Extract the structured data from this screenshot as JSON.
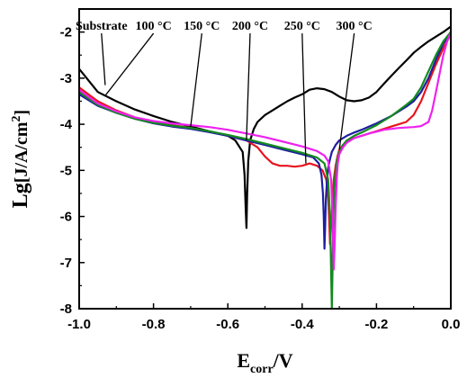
{
  "chart_data": {
    "type": "line",
    "xlabel": {
      "main": "E",
      "sub": "corr",
      "rest": "/V"
    },
    "ylabel": {
      "main": "Lg",
      "rest": "[J/A/cm",
      "sup": "2",
      "end": "]"
    },
    "xlim": [
      -1.0,
      0.0
    ],
    "ylim": [
      -8,
      -1.5
    ],
    "xticks": [
      -1.0,
      -0.8,
      -0.6,
      -0.4,
      -0.2,
      0.0
    ],
    "xtick_labels": [
      "-1.0",
      "-0.8",
      "-0.6",
      "-0.4",
      "-0.2",
      "0.0"
    ],
    "yticks": [
      -8,
      -7,
      -6,
      -5,
      -4,
      -3,
      -2
    ],
    "ytick_labels": [
      "-8",
      "-7",
      "-6",
      "-5",
      "-4",
      "-3",
      "-2"
    ],
    "grid": false,
    "legend": "none",
    "annotations": [
      {
        "text": "Substrate",
        "x": -0.94,
        "y": -1.95,
        "pointer": [
          -0.93,
          -3.15
        ]
      },
      {
        "text": "100 °C",
        "x": -0.8,
        "y": -1.95,
        "pointer": [
          -0.93,
          -3.38
        ]
      },
      {
        "text": "150 °C",
        "x": -0.67,
        "y": -1.95,
        "pointer": [
          -0.7,
          -4.05
        ]
      },
      {
        "text": "200 °C",
        "x": -0.54,
        "y": -1.95,
        "pointer": [
          -0.55,
          -4.35
        ]
      },
      {
        "text": "250 °C",
        "x": -0.4,
        "y": -1.95,
        "pointer": [
          -0.39,
          -4.85
        ]
      },
      {
        "text": "300 °C",
        "x": -0.26,
        "y": -1.95,
        "pointer": [
          -0.3,
          -4.55
        ]
      }
    ],
    "series": [
      {
        "color": "#000000",
        "x": [
          -1.0,
          -0.95,
          -0.9,
          -0.85,
          -0.8,
          -0.75,
          -0.7,
          -0.65,
          -0.6,
          -0.58,
          -0.56,
          -0.555,
          -0.552,
          -0.55,
          -0.548,
          -0.545,
          -0.54,
          -0.53,
          -0.52,
          -0.5,
          -0.48,
          -0.46,
          -0.44,
          -0.42,
          -0.4,
          -0.38,
          -0.36,
          -0.34,
          -0.32,
          -0.3,
          -0.28,
          -0.26,
          -0.24,
          -0.22,
          -0.2,
          -0.18,
          -0.16,
          -0.14,
          -0.12,
          -0.1,
          -0.08,
          -0.06,
          -0.04,
          -0.02,
          0.0
        ],
        "y": [
          -2.8,
          -3.3,
          -3.5,
          -3.68,
          -3.82,
          -3.95,
          -4.05,
          -4.15,
          -4.25,
          -4.35,
          -4.6,
          -5.1,
          -5.8,
          -6.25,
          -5.5,
          -4.8,
          -4.35,
          -4.1,
          -3.95,
          -3.8,
          -3.7,
          -3.6,
          -3.5,
          -3.42,
          -3.35,
          -3.25,
          -3.22,
          -3.24,
          -3.3,
          -3.4,
          -3.48,
          -3.5,
          -3.48,
          -3.42,
          -3.3,
          -3.12,
          -2.95,
          -2.78,
          -2.62,
          -2.45,
          -2.32,
          -2.2,
          -2.1,
          -2.0,
          -1.88
        ]
      },
      {
        "color": "#e8141e",
        "x": [
          -1.0,
          -0.95,
          -0.9,
          -0.85,
          -0.8,
          -0.75,
          -0.7,
          -0.65,
          -0.6,
          -0.55,
          -0.52,
          -0.5,
          -0.48,
          -0.46,
          -0.44,
          -0.42,
          -0.4,
          -0.38,
          -0.36,
          -0.345,
          -0.335,
          -0.33,
          -0.327,
          -0.325,
          -0.322,
          -0.318,
          -0.315,
          -0.31,
          -0.305,
          -0.3,
          -0.29,
          -0.28,
          -0.26,
          -0.24,
          -0.22,
          -0.2,
          -0.18,
          -0.16,
          -0.14,
          -0.12,
          -0.1,
          -0.08,
          -0.06,
          -0.04,
          -0.02,
          0.0
        ],
        "y": [
          -3.2,
          -3.5,
          -3.7,
          -3.85,
          -3.95,
          -4.02,
          -4.08,
          -4.15,
          -4.25,
          -4.35,
          -4.5,
          -4.7,
          -4.85,
          -4.9,
          -4.9,
          -4.92,
          -4.9,
          -4.85,
          -4.9,
          -5.0,
          -5.2,
          -5.6,
          -6.1,
          -6.6,
          -6.2,
          -5.6,
          -5.2,
          -4.9,
          -4.7,
          -4.55,
          -4.45,
          -4.38,
          -4.3,
          -4.25,
          -4.2,
          -4.15,
          -4.1,
          -4.05,
          -4.0,
          -3.95,
          -3.8,
          -3.5,
          -3.1,
          -2.7,
          -2.35,
          -2.05
        ]
      },
      {
        "color": "#1e1ea0",
        "x": [
          -1.0,
          -0.95,
          -0.9,
          -0.85,
          -0.8,
          -0.75,
          -0.7,
          -0.65,
          -0.6,
          -0.55,
          -0.5,
          -0.45,
          -0.4,
          -0.37,
          -0.355,
          -0.348,
          -0.344,
          -0.342,
          -0.34,
          -0.338,
          -0.336,
          -0.333,
          -0.33,
          -0.325,
          -0.32,
          -0.31,
          -0.3,
          -0.28,
          -0.26,
          -0.24,
          -0.22,
          -0.2,
          -0.18,
          -0.16,
          -0.14,
          -0.12,
          -0.1,
          -0.08,
          -0.06,
          -0.04,
          -0.02,
          0.0
        ],
        "y": [
          -3.35,
          -3.6,
          -3.75,
          -3.88,
          -3.98,
          -4.05,
          -4.1,
          -4.17,
          -4.25,
          -4.35,
          -4.45,
          -4.55,
          -4.65,
          -4.72,
          -4.85,
          -5.1,
          -5.5,
          -6.0,
          -6.7,
          -6.2,
          -5.6,
          -5.2,
          -4.95,
          -4.75,
          -4.6,
          -4.45,
          -4.35,
          -4.25,
          -4.18,
          -4.12,
          -4.05,
          -3.98,
          -3.9,
          -3.82,
          -3.72,
          -3.62,
          -3.5,
          -3.3,
          -3.0,
          -2.6,
          -2.25,
          -2.0
        ]
      },
      {
        "color": "#138a1e",
        "x": [
          -1.0,
          -0.95,
          -0.9,
          -0.85,
          -0.8,
          -0.75,
          -0.7,
          -0.65,
          -0.6,
          -0.55,
          -0.5,
          -0.45,
          -0.4,
          -0.36,
          -0.34,
          -0.33,
          -0.325,
          -0.322,
          -0.32,
          -0.318,
          -0.316,
          -0.313,
          -0.31,
          -0.305,
          -0.3,
          -0.29,
          -0.28,
          -0.26,
          -0.24,
          -0.22,
          -0.2,
          -0.18,
          -0.16,
          -0.14,
          -0.12,
          -0.1,
          -0.08,
          -0.06,
          -0.04,
          -0.02,
          0.0
        ],
        "y": [
          -3.3,
          -3.58,
          -3.75,
          -3.88,
          -3.97,
          -4.03,
          -4.08,
          -4.15,
          -4.23,
          -4.32,
          -4.42,
          -4.52,
          -4.62,
          -4.72,
          -4.85,
          -5.2,
          -6.0,
          -7.2,
          -8.0,
          -7.0,
          -6.0,
          -5.4,
          -5.0,
          -4.75,
          -4.6,
          -4.45,
          -4.35,
          -4.25,
          -4.18,
          -4.1,
          -4.02,
          -3.92,
          -3.82,
          -3.7,
          -3.58,
          -3.45,
          -3.2,
          -2.85,
          -2.5,
          -2.2,
          -2.0
        ]
      },
      {
        "color": "#ee22ee",
        "x": [
          -1.0,
          -0.95,
          -0.9,
          -0.85,
          -0.8,
          -0.75,
          -0.7,
          -0.65,
          -0.6,
          -0.55,
          -0.5,
          -0.45,
          -0.4,
          -0.36,
          -0.34,
          -0.33,
          -0.322,
          -0.318,
          -0.315,
          -0.312,
          -0.31,
          -0.307,
          -0.304,
          -0.3,
          -0.29,
          -0.28,
          -0.26,
          -0.24,
          -0.22,
          -0.2,
          -0.18,
          -0.16,
          -0.14,
          -0.12,
          -0.1,
          -0.08,
          -0.06,
          -0.05,
          -0.04,
          -0.03,
          -0.02,
          -0.01,
          0.0
        ],
        "y": [
          -3.25,
          -3.55,
          -3.72,
          -3.85,
          -3.93,
          -3.98,
          -4.02,
          -4.06,
          -4.12,
          -4.2,
          -4.28,
          -4.38,
          -4.48,
          -4.58,
          -4.68,
          -4.8,
          -5.2,
          -6.0,
          -7.15,
          -6.5,
          -5.8,
          -5.2,
          -4.85,
          -4.65,
          -4.5,
          -4.4,
          -4.3,
          -4.25,
          -4.2,
          -4.16,
          -4.12,
          -4.1,
          -4.08,
          -4.07,
          -4.06,
          -4.04,
          -3.95,
          -3.7,
          -3.3,
          -2.9,
          -2.5,
          -2.2,
          -2.0
        ]
      }
    ]
  }
}
